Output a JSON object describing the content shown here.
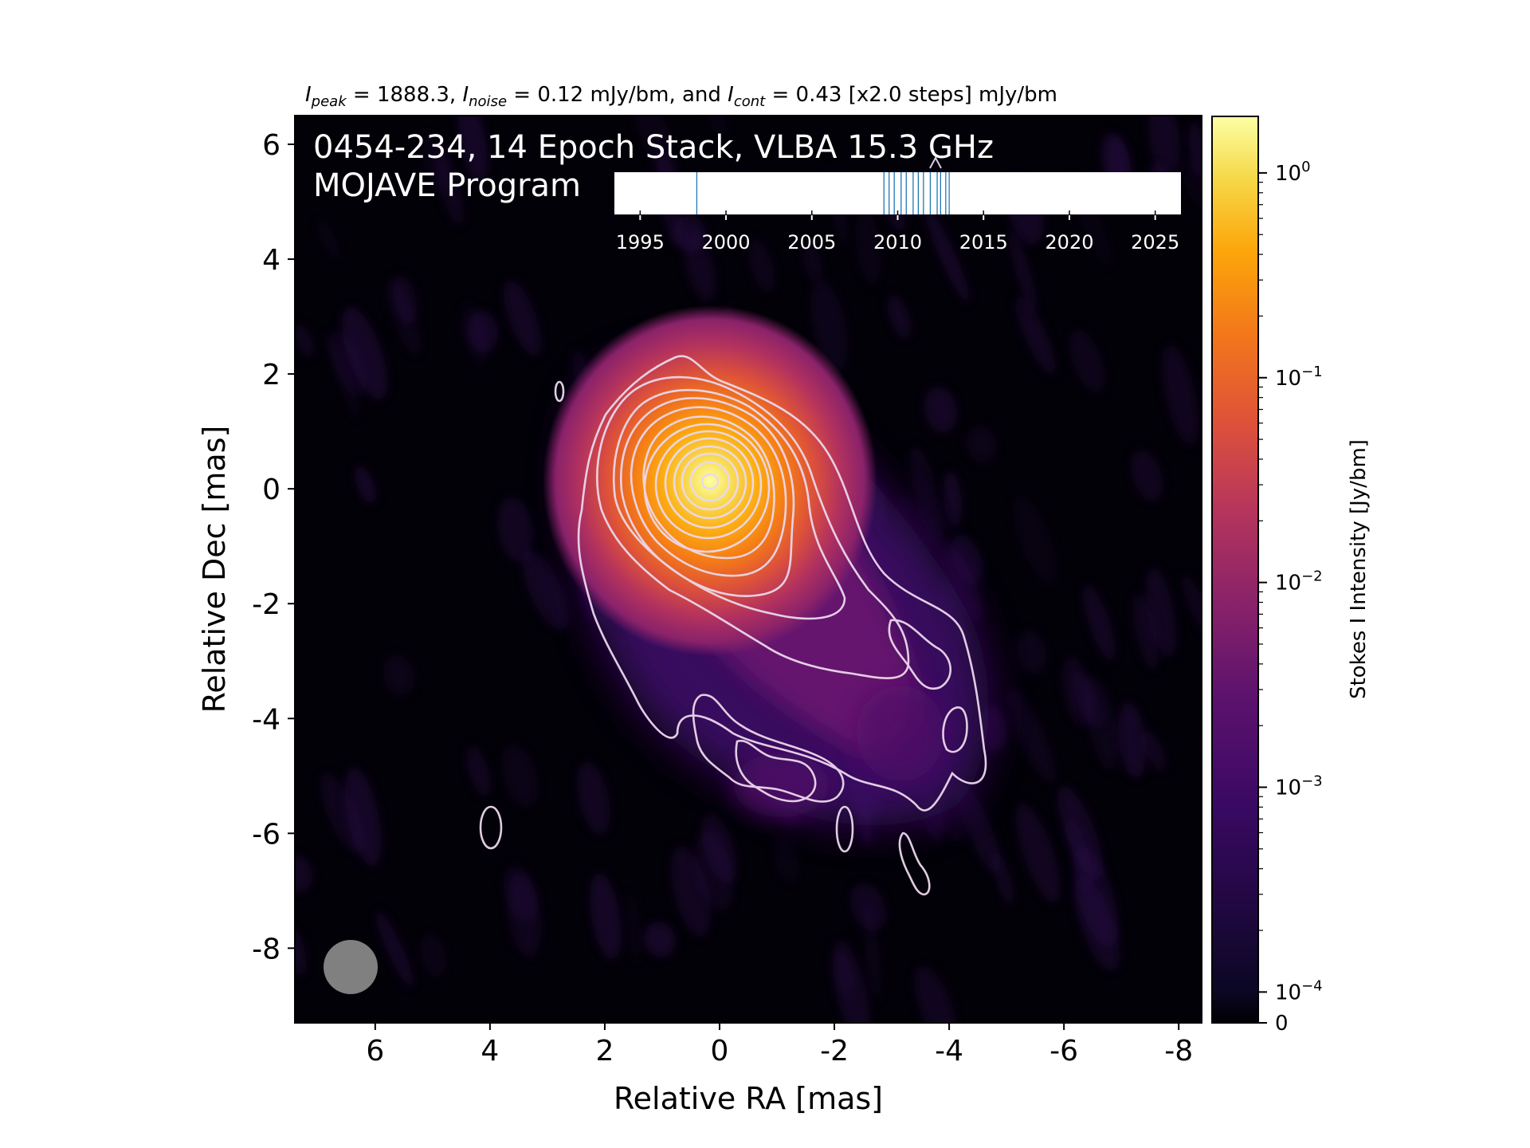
{
  "figure": {
    "header_parts": {
      "peak_sym": "I",
      "peak_sub": "peak",
      "peak_val": " = 1888.3, ",
      "noise_sym": "I",
      "noise_sub": "noise",
      "noise_val": " = 0.12 mJy/bm, and ",
      "cont_sym": "I",
      "cont_sub": "cont",
      "cont_val": " = 0.43 [x2.0 steps] mJy/bm"
    },
    "title_line1": "0454-234, 14 Epoch Stack, VLBA 15.3 GHz",
    "title_line2": "MOJAVE Program"
  },
  "chart_data": [
    {
      "type": "heatmap",
      "description_units": "mas",
      "xlabel": "Relative RA [mas]",
      "ylabel": "Relative Dec [mas]",
      "xlim": [
        7.4,
        -8.4
      ],
      "ylim": [
        -9.3,
        6.5
      ],
      "xticks": [
        6,
        4,
        2,
        0,
        -2,
        -4,
        -6,
        -8
      ],
      "xtick_labels": [
        "6",
        "4",
        "2",
        "0",
        "-2",
        "-4",
        "-6",
        "-8"
      ],
      "yticks": [
        6,
        4,
        2,
        0,
        -2,
        -4,
        -6,
        -8
      ],
      "ytick_labels": [
        "6",
        "4",
        "2",
        "0",
        "-2",
        "-4",
        "-6",
        "-8"
      ],
      "peak_position": [
        0,
        0
      ],
      "peak_intensity_mJy_per_beam": 1888.3,
      "noise_mJy_per_beam": 0.12,
      "lowest_contour_mJy_per_beam": 0.43,
      "contour_step_factor": 2.0,
      "beam": {
        "ra": 6.3,
        "dec": -8.4,
        "diameter_mas": 0.95,
        "color": "#808080"
      },
      "colormap": "inferno",
      "colorbar": {
        "label": "Stokes I Intensity [Jy/bm]",
        "scale": "log",
        "range_Jy": [
          0,
          1.888
        ],
        "tick_labels": [
          {
            "base": "10",
            "exp": "0",
            "value": 1
          },
          {
            "base": "10",
            "exp": "−1",
            "value": 0.1
          },
          {
            "base": "10",
            "exp": "−2",
            "value": 0.01
          },
          {
            "base": "10",
            "exp": "−3",
            "value": 0.001
          },
          {
            "base": "10",
            "exp": "−4",
            "value": 0.0001
          },
          {
            "base": "0",
            "exp": "",
            "value": 0
          }
        ]
      },
      "grid": false
    },
    {
      "type": "timeline",
      "xlim": [
        1993.5,
        2026.5
      ],
      "xticks": [
        1995,
        2000,
        2005,
        2010,
        2015,
        2020,
        2025
      ],
      "xtick_labels": [
        "1995",
        "2000",
        "2005",
        "2010",
        "2015",
        "2020",
        "2025"
      ],
      "epochs": [
        1998.3,
        2009.2,
        2009.5,
        2009.8,
        2010.2,
        2010.5,
        2010.9,
        2011.2,
        2011.5,
        2011.9,
        2012.3,
        2012.5,
        2012.8,
        2013.0
      ],
      "epoch_color": "#1f77b4"
    }
  ]
}
